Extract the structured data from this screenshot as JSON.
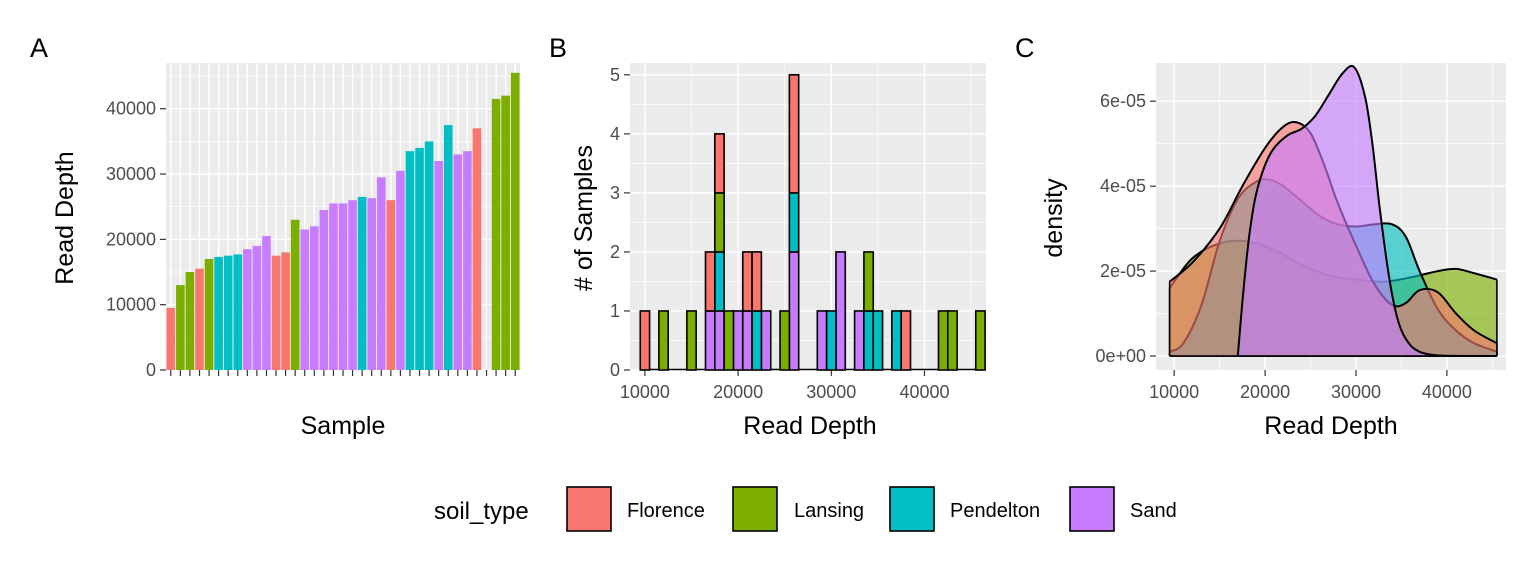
{
  "colors": {
    "Florence": "#F8766D",
    "Lansing": "#7CAE00",
    "Pendelton": "#00BFC4",
    "Sand": "#C77CFF",
    "panel_bg": "#EBEBEB",
    "grid": "#FFFFFF",
    "tick": "#333333"
  },
  "legend": {
    "title": "soil_type",
    "items": [
      "Florence",
      "Lansing",
      "Pendelton",
      "Sand"
    ]
  },
  "chart_data": [
    {
      "type": "bar",
      "tag": "A",
      "xlabel": "Sample",
      "ylabel": "Read Depth",
      "ylim": [
        0,
        47000
      ],
      "yticks": [
        "0",
        "10000",
        "20000",
        "30000",
        "40000"
      ],
      "grid": true,
      "series": [
        {
          "name": "Florence",
          "values": [
            9500,
            null,
            null,
            15500,
            null,
            null,
            null,
            null,
            null,
            null,
            null,
            17500,
            18000,
            null,
            null,
            null,
            null,
            null,
            null,
            null,
            null,
            null,
            null,
            26000,
            null,
            null,
            null,
            null,
            null,
            null,
            null,
            null,
            37000,
            null,
            null,
            null,
            null
          ]
        },
        {
          "name": "Lansing",
          "values": [
            null,
            13000,
            15000,
            null,
            17000,
            null,
            null,
            null,
            null,
            null,
            null,
            null,
            null,
            23000,
            null,
            null,
            null,
            null,
            null,
            null,
            null,
            null,
            null,
            null,
            null,
            null,
            null,
            null,
            null,
            null,
            null,
            null,
            null,
            null,
            41500,
            42000,
            45500
          ]
        },
        {
          "name": "Pendelton",
          "values": [
            null,
            null,
            null,
            null,
            null,
            17300,
            17500,
            17700,
            null,
            null,
            null,
            null,
            null,
            null,
            null,
            null,
            null,
            null,
            null,
            null,
            26500,
            null,
            null,
            null,
            null,
            33500,
            34000,
            35000,
            null,
            37500,
            null,
            null,
            null,
            null,
            null,
            null,
            null
          ]
        },
        {
          "name": "Sand",
          "values": [
            null,
            null,
            null,
            null,
            null,
            null,
            null,
            null,
            18500,
            19000,
            20500,
            null,
            null,
            null,
            21500,
            22000,
            24500,
            25500,
            25500,
            26000,
            null,
            26300,
            29500,
            null,
            30500,
            null,
            null,
            null,
            32000,
            null,
            33000,
            33500,
            null,
            null,
            null,
            null,
            null
          ]
        }
      ]
    },
    {
      "type": "bar",
      "stacked": true,
      "tag": "B",
      "xlabel": "Read Depth",
      "ylabel": "# of Samples",
      "ylim": [
        0,
        5.2
      ],
      "xlim": [
        8400,
        46600
      ],
      "xticks": [
        10000,
        20000,
        30000,
        40000
      ],
      "yticks": [
        0,
        1,
        2,
        3,
        4,
        5
      ],
      "bin_width": 1000,
      "grid": true,
      "series": [
        {
          "name": "Florence",
          "bins": [
            [
              10000,
              1
            ],
            [
              17000,
              1
            ],
            [
              18000,
              1
            ],
            [
              21000,
              1
            ],
            [
              22000,
              1
            ],
            [
              26000,
              2
            ],
            [
              38000,
              1
            ]
          ]
        },
        {
          "name": "Lansing",
          "bins": [
            [
              12000,
              1
            ],
            [
              15000,
              1
            ],
            [
              18000,
              1
            ],
            [
              19000,
              1
            ],
            [
              25000,
              1
            ],
            [
              34000,
              1
            ],
            [
              42000,
              1
            ],
            [
              43000,
              1
            ],
            [
              46000,
              1
            ]
          ]
        },
        {
          "name": "Pendelton",
          "bins": [
            [
              18000,
              1
            ],
            [
              22000,
              1
            ],
            [
              26000,
              1
            ],
            [
              30000,
              1
            ],
            [
              34000,
              1
            ],
            [
              35000,
              1
            ],
            [
              37000,
              1
            ]
          ]
        },
        {
          "name": "Sand",
          "bins": [
            [
              17000,
              1
            ],
            [
              18000,
              1
            ],
            [
              20000,
              1
            ],
            [
              21000,
              1
            ],
            [
              23000,
              1
            ],
            [
              26000,
              2
            ],
            [
              29000,
              1
            ],
            [
              31000,
              2
            ],
            [
              33000,
              1
            ]
          ]
        }
      ]
    },
    {
      "type": "area",
      "tag": "C",
      "xlabel": "Read Depth",
      "ylabel": "density",
      "xlim": [
        8000,
        46500
      ],
      "ylim": [
        0,
        6.9e-05
      ],
      "xticks": [
        10000,
        20000,
        30000,
        40000
      ],
      "yticks": [
        "0e+00",
        "2e-05",
        "4e-05",
        "6e-05"
      ],
      "ytick_values": [
        0,
        2e-05,
        4e-05,
        6e-05
      ],
      "grid": true,
      "series": [
        {
          "name": "Lansing",
          "x": [
            9500,
            12000,
            15000,
            18000,
            21000,
            24000,
            27000,
            30000,
            33000,
            36000,
            39000,
            41000,
            43000,
            45500
          ],
          "y": [
            1.6e-05,
            2.3e-05,
            2.65e-05,
            2.7e-05,
            2.5e-05,
            2.15e-05,
            1.9e-05,
            1.8e-05,
            1.75e-05,
            1.85e-05,
            2e-05,
            2.05e-05,
            1.95e-05,
            1.8e-05
          ]
        },
        {
          "name": "Pendelton",
          "x": [
            9500,
            11000,
            13000,
            15000,
            17000,
            19000,
            20500,
            22000,
            24000,
            26000,
            28000,
            30000,
            32000,
            34000,
            35500,
            37000,
            39000,
            41000,
            43000,
            45500
          ],
          "y": [
            1e-06,
            3e-06,
            1.2e-05,
            2.7e-05,
            3.7e-05,
            4.1e-05,
            4.15e-05,
            4e-05,
            3.65e-05,
            3.3e-05,
            3.1e-05,
            3.05e-05,
            3.1e-05,
            3.1e-05,
            2.8e-05,
            2e-05,
            1.1e-05,
            6e-06,
            3e-06,
            1e-06
          ]
        },
        {
          "name": "Florence",
          "x": [
            9500,
            12000,
            15000,
            17500,
            20000,
            22000,
            23500,
            25000,
            26500,
            28000,
            30000,
            32000,
            34000,
            35500,
            37000,
            39000,
            41000,
            43000,
            45500
          ],
          "y": [
            1.75e-05,
            2.2e-05,
            3e-05,
            4e-05,
            4.9e-05,
            5.4e-05,
            5.5e-05,
            5.25e-05,
            4.5e-05,
            3.6e-05,
            2.6e-05,
            1.7e-05,
            1.2e-05,
            1.25e-05,
            1.55e-05,
            1.5e-05,
            1e-05,
            6e-06,
            3e-06
          ]
        },
        {
          "name": "Sand",
          "x": [
            17000,
            17600,
            18300,
            19000,
            20000,
            21000,
            22500,
            24000,
            25500,
            27000,
            28500,
            29800,
            31000,
            31800,
            32600,
            33400,
            34200,
            35000,
            36000,
            37000,
            38000,
            39000,
            40000,
            41500,
            43000,
            45500
          ],
          "y": [
            0,
            1.5e-05,
            2.9e-05,
            3.8e-05,
            4.5e-05,
            4.9e-05,
            5.2e-05,
            5.35e-05,
            5.65e-05,
            6.15e-05,
            6.65e-05,
            6.8e-05,
            6.1e-05,
            5e-05,
            3.5e-05,
            2.2e-05,
            1.2e-05,
            6e-06,
            2.5e-06,
            1e-06,
            4e-07,
            1.5e-07,
            5e-08,
            1e-08,
            0,
            0
          ]
        }
      ]
    }
  ]
}
